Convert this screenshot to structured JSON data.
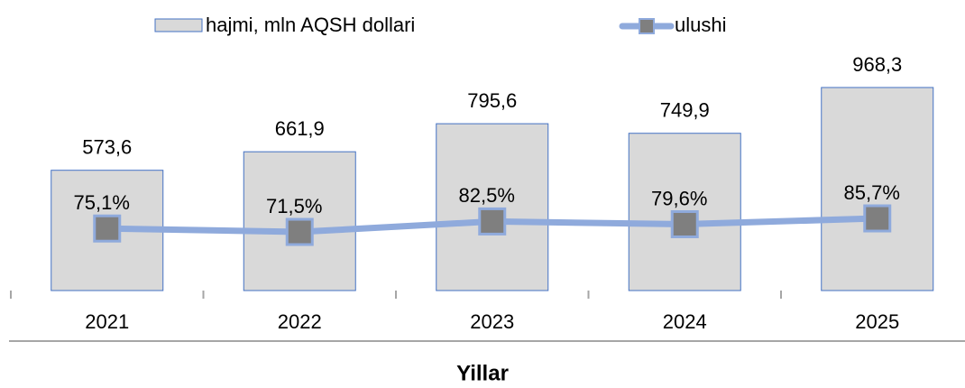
{
  "chart_data": {
    "type": "bar-line",
    "x_label": "Yillar",
    "categories": [
      "2021",
      "2022",
      "2023",
      "2024",
      "2025"
    ],
    "series": [
      {
        "name": "hajmi, mln AQSH dollari",
        "type": "bar",
        "color": "#d9d9d9",
        "values": [
          573.6,
          661.9,
          795.6,
          749.9,
          968.3
        ],
        "value_labels": [
          "573,6",
          "661,9",
          "795,6",
          "749,9",
          "968,3"
        ]
      },
      {
        "name": "ulushi",
        "type": "line",
        "axis": "y2",
        "color": "#8faadc",
        "values": [
          75.1,
          71.5,
          82.5,
          79.6,
          85.7
        ],
        "value_labels": [
          "75,1%",
          "71,5%",
          "82,5%",
          "79,6%",
          "85,7%"
        ]
      }
    ],
    "ylim": [
      0,
      1000
    ],
    "y2lim": [
      10,
      230
    ],
    "legend": "top"
  }
}
